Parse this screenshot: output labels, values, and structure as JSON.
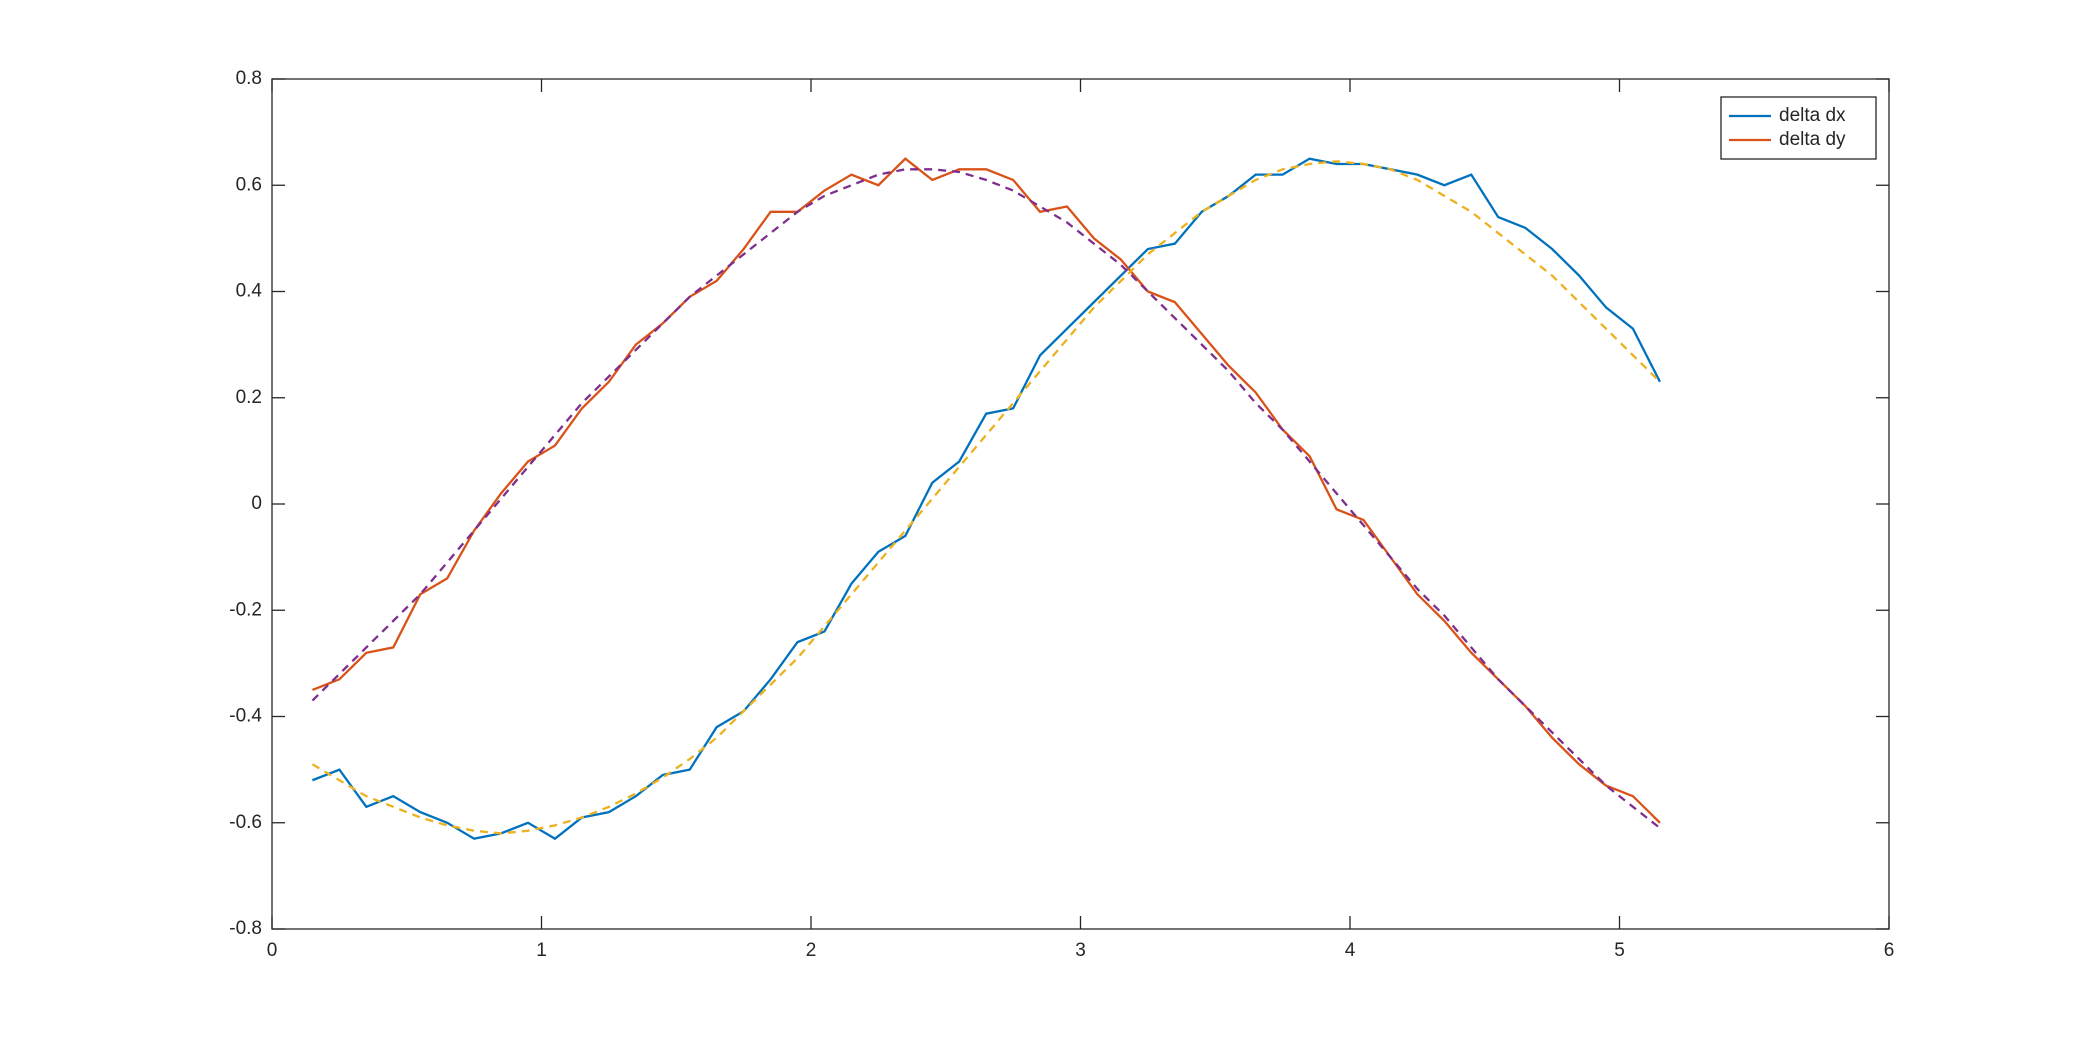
{
  "chart_data": {
    "type": "line",
    "x": [
      0.15,
      0.25,
      0.35,
      0.45,
      0.55,
      0.65,
      0.75,
      0.85,
      0.95,
      1.05,
      1.15,
      1.25,
      1.35,
      1.45,
      1.55,
      1.65,
      1.75,
      1.85,
      1.95,
      2.05,
      2.15,
      2.25,
      2.35,
      2.45,
      2.55,
      2.65,
      2.75,
      2.85,
      2.95,
      3.05,
      3.15,
      3.25,
      3.35,
      3.45,
      3.55,
      3.65,
      3.75,
      3.85,
      3.95,
      4.05,
      4.15,
      4.25,
      4.35,
      4.45,
      4.55,
      4.65,
      4.75,
      4.85,
      4.95,
      5.05,
      5.15
    ],
    "series": [
      {
        "name": "delta dx",
        "color": "#0072BD",
        "line_style": "solid",
        "values": [
          -0.52,
          -0.5,
          -0.57,
          -0.55,
          -0.58,
          -0.6,
          -0.63,
          -0.62,
          -0.6,
          -0.63,
          -0.59,
          -0.58,
          -0.55,
          -0.51,
          -0.5,
          -0.42,
          -0.39,
          -0.33,
          -0.26,
          -0.24,
          -0.15,
          -0.09,
          -0.06,
          0.04,
          0.08,
          0.17,
          0.18,
          0.28,
          0.33,
          0.38,
          0.43,
          0.48,
          0.49,
          0.55,
          0.58,
          0.62,
          0.62,
          0.65,
          0.64,
          0.64,
          0.63,
          0.62,
          0.6,
          0.62,
          0.54,
          0.52,
          0.48,
          0.43,
          0.37,
          0.33,
          0.23
        ]
      },
      {
        "name": "delta dy",
        "color": "#D95319",
        "line_style": "solid",
        "values": [
          -0.35,
          -0.33,
          -0.28,
          -0.27,
          -0.17,
          -0.14,
          -0.05,
          0.02,
          0.08,
          0.11,
          0.18,
          0.23,
          0.3,
          0.34,
          0.39,
          0.42,
          0.48,
          0.55,
          0.55,
          0.59,
          0.62,
          0.6,
          0.65,
          0.61,
          0.63,
          0.63,
          0.61,
          0.55,
          0.56,
          0.5,
          0.46,
          0.4,
          0.38,
          0.32,
          0.26,
          0.21,
          0.14,
          0.09,
          -0.01,
          -0.03,
          -0.1,
          -0.17,
          -0.22,
          -0.28,
          -0.33,
          -0.38,
          -0.44,
          -0.49,
          -0.53,
          -0.55,
          -0.6
        ]
      },
      {
        "color": "#EDB120",
        "line_style": "dashed",
        "values": [
          -0.49,
          -0.52,
          -0.55,
          -0.57,
          -0.59,
          -0.605,
          -0.615,
          -0.62,
          -0.615,
          -0.605,
          -0.59,
          -0.57,
          -0.545,
          -0.515,
          -0.48,
          -0.44,
          -0.39,
          -0.34,
          -0.29,
          -0.23,
          -0.17,
          -0.11,
          -0.05,
          0.01,
          0.07,
          0.13,
          0.19,
          0.25,
          0.31,
          0.37,
          0.42,
          0.47,
          0.51,
          0.55,
          0.58,
          0.61,
          0.63,
          0.64,
          0.645,
          0.64,
          0.63,
          0.61,
          0.58,
          0.55,
          0.51,
          0.47,
          0.43,
          0.38,
          0.33,
          0.28,
          0.23
        ]
      },
      {
        "color": "#7E2F8E",
        "line_style": "dashed",
        "values": [
          -0.37,
          -0.32,
          -0.27,
          -0.22,
          -0.17,
          -0.11,
          -0.05,
          0.01,
          0.07,
          0.13,
          0.19,
          0.24,
          0.29,
          0.34,
          0.39,
          0.43,
          0.47,
          0.51,
          0.55,
          0.58,
          0.6,
          0.62,
          0.63,
          0.63,
          0.625,
          0.61,
          0.59,
          0.56,
          0.53,
          0.49,
          0.45,
          0.4,
          0.35,
          0.3,
          0.25,
          0.19,
          0.14,
          0.08,
          0.02,
          -0.04,
          -0.1,
          -0.16,
          -0.21,
          -0.27,
          -0.33,
          -0.38,
          -0.43,
          -0.48,
          -0.53,
          -0.57,
          -0.61
        ]
      }
    ],
    "xlim": [
      0,
      6
    ],
    "xticks": [
      0,
      1,
      2,
      3,
      4,
      5,
      6
    ],
    "ylim": [
      -0.8,
      0.8
    ],
    "yticks": [
      -0.8,
      -0.6,
      -0.4,
      -0.2,
      0,
      0.2,
      0.4,
      0.6,
      0.8
    ],
    "grid": false,
    "legend": "northeast"
  }
}
